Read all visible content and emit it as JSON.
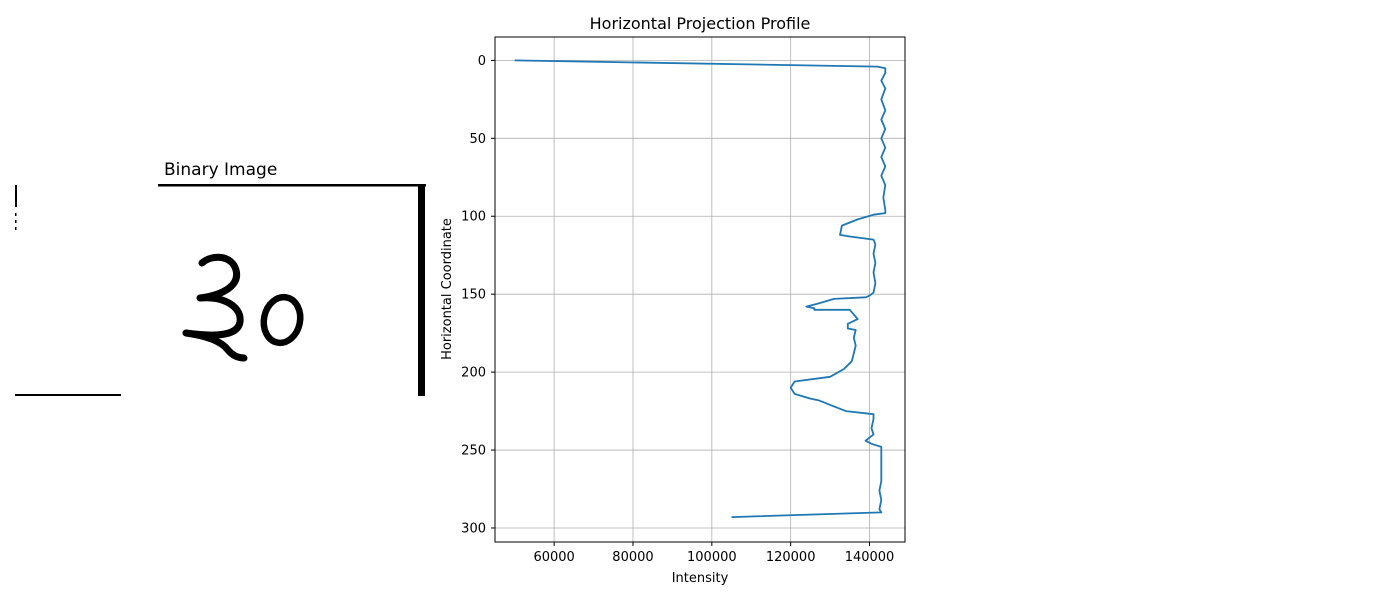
{
  "image_panel": {
    "title": "Binary Image"
  },
  "chart_data": {
    "type": "line",
    "title": "Horizontal Projection Profile",
    "xlabel": "Intensity",
    "ylabel": "Horizontal Coordinate",
    "xlim": [
      45000,
      149000
    ],
    "ylim": [
      -15,
      309
    ],
    "y_inverted": true,
    "grid": true,
    "x_ticks": [
      60000,
      80000,
      100000,
      120000,
      140000
    ],
    "y_ticks": [
      0,
      50,
      100,
      150,
      200,
      250,
      300
    ],
    "series": [
      {
        "color": "#1f77b4",
        "x": [
          50000,
          142000,
          144000,
          144000,
          143000,
          144000,
          143000,
          144000,
          143000,
          144000,
          143000,
          144000,
          143000,
          144000,
          143000,
          144000,
          143500,
          144000,
          144000,
          141000,
          137000,
          133000,
          132500,
          135000,
          141000,
          141500,
          141000,
          141500,
          141000,
          141500,
          141000,
          140000,
          139000,
          131000,
          127000,
          124000,
          126000,
          126000,
          135000,
          137000,
          134500,
          134500,
          136500,
          136000,
          136500,
          136000,
          135500,
          133500,
          130000,
          121000,
          120000,
          121000,
          125000,
          127000,
          131000,
          134000,
          141000,
          141000,
          140500,
          141000,
          140000,
          139000,
          140500,
          143000,
          143000,
          143000,
          143000,
          143000,
          142500,
          143000,
          142500,
          143000,
          105000
        ],
        "y": [
          0,
          4,
          5,
          8,
          13,
          18,
          25,
          32,
          38,
          44,
          50,
          56,
          62,
          68,
          74,
          80,
          88,
          96,
          98,
          99,
          102,
          106,
          112,
          113,
          115,
          118,
          124,
          130,
          136,
          143,
          149,
          151,
          152,
          153,
          156,
          158,
          159,
          160,
          160,
          166,
          169,
          172,
          173,
          178,
          183,
          188,
          193,
          198,
          203,
          206,
          210,
          214,
          217,
          218,
          222,
          225,
          227,
          230,
          236,
          240,
          242,
          244,
          246,
          248,
          252,
          258,
          264,
          270,
          276,
          282,
          288,
          290,
          293
        ]
      }
    ]
  }
}
